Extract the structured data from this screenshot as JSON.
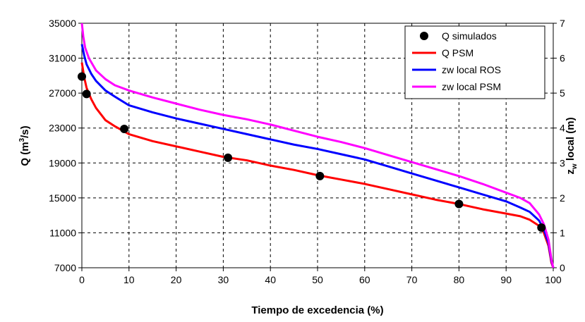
{
  "chart_data": {
    "type": "line",
    "xlabel": "Tiempo de excedencia (%)",
    "ylabel_left": {
      "main": "Q (m",
      "sup": "3",
      "tail": "/s)"
    },
    "ylabel_right": {
      "main": "z",
      "sub": "w",
      "tail": " local (m)"
    },
    "xlim": [
      0,
      100
    ],
    "ylim_left": [
      7000,
      35000
    ],
    "ylim_right": [
      0,
      7
    ],
    "x_ticks": [
      0,
      10,
      20,
      30,
      40,
      50,
      60,
      70,
      80,
      90,
      100
    ],
    "y_ticks_left": [
      7000,
      11000,
      15000,
      19000,
      23000,
      27000,
      31000,
      35000
    ],
    "y_ticks_right": [
      0,
      1,
      2,
      3,
      4,
      5,
      6,
      7
    ],
    "grid": true,
    "legend_position": "top-right",
    "series": [
      {
        "name": "Q simulados",
        "kind": "scatter",
        "axis": "left",
        "color": "#000000",
        "points": [
          [
            0,
            28900
          ],
          [
            1,
            26900
          ],
          [
            9,
            22900
          ],
          [
            31,
            19600
          ],
          [
            50.5,
            17500
          ],
          [
            80,
            14300
          ],
          [
            97.5,
            11600
          ]
        ]
      },
      {
        "name": "Q PSM",
        "kind": "line",
        "axis": "left",
        "color": "#ff0000",
        "points": [
          [
            0,
            30500
          ],
          [
            0.5,
            28800
          ],
          [
            1,
            27600
          ],
          [
            2,
            26300
          ],
          [
            3,
            25300
          ],
          [
            5,
            23900
          ],
          [
            7,
            23200
          ],
          [
            10,
            22300
          ],
          [
            15,
            21500
          ],
          [
            20,
            20900
          ],
          [
            25,
            20300
          ],
          [
            30,
            19700
          ],
          [
            35,
            19300
          ],
          [
            40,
            18700
          ],
          [
            45,
            18200
          ],
          [
            50,
            17600
          ],
          [
            55,
            17100
          ],
          [
            60,
            16600
          ],
          [
            65,
            16000
          ],
          [
            70,
            15400
          ],
          [
            75,
            14800
          ],
          [
            80,
            14300
          ],
          [
            85,
            13700
          ],
          [
            90,
            13200
          ],
          [
            93,
            12900
          ],
          [
            95,
            12500
          ],
          [
            97,
            11800
          ],
          [
            98,
            11000
          ],
          [
            99,
            9500
          ],
          [
            99.6,
            7600
          ],
          [
            100,
            7000
          ]
        ]
      },
      {
        "name": "zw local ROS",
        "kind": "line",
        "axis": "left",
        "color": "#0000ff",
        "points": [
          [
            0,
            32600
          ],
          [
            0.5,
            31300
          ],
          [
            1,
            30300
          ],
          [
            2,
            29200
          ],
          [
            3,
            28400
          ],
          [
            5,
            27300
          ],
          [
            7,
            26600
          ],
          [
            10,
            25600
          ],
          [
            15,
            24800
          ],
          [
            20,
            24100
          ],
          [
            25,
            23500
          ],
          [
            30,
            22900
          ],
          [
            35,
            22300
          ],
          [
            40,
            21700
          ],
          [
            45,
            21100
          ],
          [
            50,
            20600
          ],
          [
            55,
            20000
          ],
          [
            60,
            19400
          ],
          [
            65,
            18600
          ],
          [
            70,
            17800
          ],
          [
            75,
            17000
          ],
          [
            80,
            16200
          ],
          [
            85,
            15400
          ],
          [
            90,
            14600
          ],
          [
            93,
            13900
          ],
          [
            95,
            13400
          ],
          [
            97,
            12400
          ],
          [
            98,
            11400
          ],
          [
            99,
            9800
          ],
          [
            99.6,
            7800
          ],
          [
            100,
            7000
          ]
        ]
      },
      {
        "name": "zw local PSM",
        "kind": "line",
        "axis": "left",
        "color": "#ff00ff",
        "points": [
          [
            0,
            35000
          ],
          [
            0.3,
            33500
          ],
          [
            0.7,
            32200
          ],
          [
            1.5,
            31000
          ],
          [
            3,
            29600
          ],
          [
            5,
            28600
          ],
          [
            7,
            27900
          ],
          [
            10,
            27300
          ],
          [
            15,
            26500
          ],
          [
            20,
            25800
          ],
          [
            25,
            25100
          ],
          [
            30,
            24500
          ],
          [
            35,
            24000
          ],
          [
            40,
            23400
          ],
          [
            45,
            22700
          ],
          [
            50,
            22000
          ],
          [
            55,
            21400
          ],
          [
            60,
            20700
          ],
          [
            65,
            19900
          ],
          [
            70,
            19100
          ],
          [
            75,
            18300
          ],
          [
            80,
            17500
          ],
          [
            85,
            16600
          ],
          [
            90,
            15600
          ],
          [
            93,
            15000
          ],
          [
            95,
            14400
          ],
          [
            97,
            13100
          ],
          [
            98,
            12000
          ],
          [
            99,
            10200
          ],
          [
            99.6,
            8000
          ],
          [
            100,
            7000
          ]
        ]
      }
    ]
  }
}
